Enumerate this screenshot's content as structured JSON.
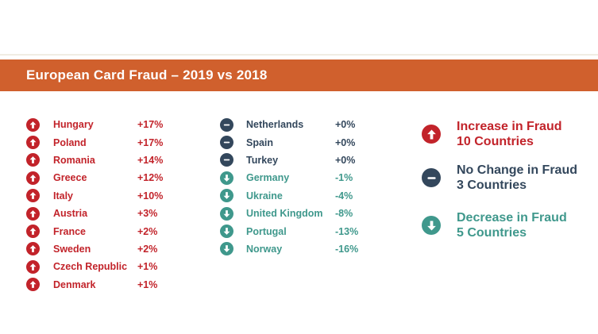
{
  "header": {
    "title": "European Card Fraud – 2019 vs 2018"
  },
  "lists": {
    "left": [
      {
        "country": "Hungary",
        "change": "+17%",
        "status": "increase"
      },
      {
        "country": "Poland",
        "change": "+17%",
        "status": "increase"
      },
      {
        "country": "Romania",
        "change": "+14%",
        "status": "increase"
      },
      {
        "country": "Greece",
        "change": "+12%",
        "status": "increase"
      },
      {
        "country": "Italy",
        "change": "+10%",
        "status": "increase"
      },
      {
        "country": "Austria",
        "change": "+3%",
        "status": "increase"
      },
      {
        "country": "France",
        "change": "+2%",
        "status": "increase"
      },
      {
        "country": "Sweden",
        "change": "+2%",
        "status": "increase"
      },
      {
        "country": "Czech Republic",
        "change": "+1%",
        "status": "increase"
      },
      {
        "country": "Denmark",
        "change": "+1%",
        "status": "increase"
      }
    ],
    "middle": [
      {
        "country": "Netherlands",
        "change": "+0%",
        "status": "nochange"
      },
      {
        "country": "Spain",
        "change": "+0%",
        "status": "nochange"
      },
      {
        "country": "Turkey",
        "change": "+0%",
        "status": "nochange"
      },
      {
        "country": "Germany",
        "change": "-1%",
        "status": "decrease"
      },
      {
        "country": "Ukraine",
        "change": "-4%",
        "status": "decrease"
      },
      {
        "country": "United Kingdom",
        "change": "-8%",
        "status": "decrease"
      },
      {
        "country": "Portugal",
        "change": "-13%",
        "status": "decrease"
      },
      {
        "country": "Norway",
        "change": "-16%",
        "status": "decrease"
      }
    ]
  },
  "legend": [
    {
      "label": "Increase in Fraud",
      "count": "10 Countries",
      "status": "increase"
    },
    {
      "label": "No Change in Fraud",
      "count": "3 Countries",
      "status": "nochange"
    },
    {
      "label": "Decrease in Fraud",
      "count": "5 Countries",
      "status": "decrease"
    }
  ],
  "colors": {
    "header_bar": "#d0602d",
    "increase": "#c2232a",
    "no_change": "#33475c",
    "decrease": "#3f988c"
  },
  "chart_data": {
    "type": "table",
    "title": "European Card Fraud – 2019 vs 2018",
    "value_unit": "percent change in card fraud, 2019 vs 2018",
    "series": [
      {
        "name": "Increase in Fraud (10 Countries)",
        "points": [
          [
            "Hungary",
            17
          ],
          [
            "Poland",
            17
          ],
          [
            "Romania",
            14
          ],
          [
            "Greece",
            12
          ],
          [
            "Italy",
            10
          ],
          [
            "Austria",
            3
          ],
          [
            "France",
            2
          ],
          [
            "Sweden",
            2
          ],
          [
            "Czech Republic",
            1
          ],
          [
            "Denmark",
            1
          ]
        ]
      },
      {
        "name": "No Change in Fraud (3 Countries)",
        "points": [
          [
            "Netherlands",
            0
          ],
          [
            "Spain",
            0
          ],
          [
            "Turkey",
            0
          ]
        ]
      },
      {
        "name": "Decrease in Fraud (5 Countries)",
        "points": [
          [
            "Germany",
            -1
          ],
          [
            "Ukraine",
            -4
          ],
          [
            "United Kingdom",
            -8
          ],
          [
            "Portugal",
            -13
          ],
          [
            "Norway",
            -16
          ]
        ]
      }
    ]
  }
}
